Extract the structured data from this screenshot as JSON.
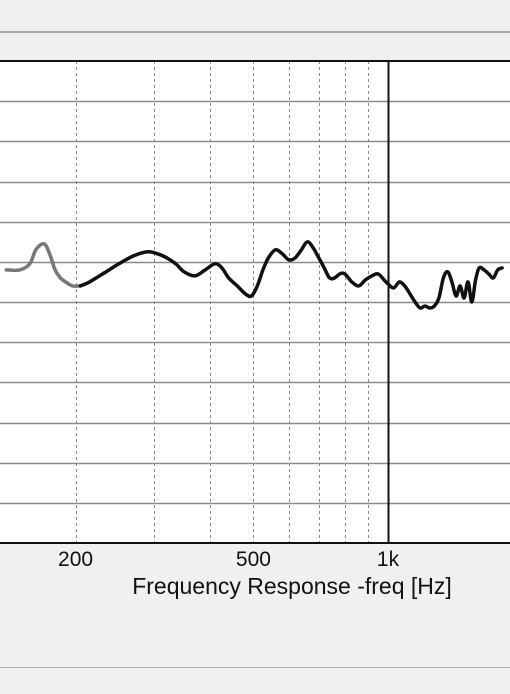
{
  "chart_data": {
    "type": "line",
    "title": "",
    "xlabel": "Frequency Response -freq [Hz]",
    "xlabel_parts": [
      "Frequency",
      "Response",
      "-freq",
      "[Hz]"
    ],
    "x_scale": "log",
    "xlim": [
      140,
      1800
    ],
    "ylim": [
      0,
      12
    ],
    "grid": true,
    "x_tick_labels": [
      {
        "value": 200,
        "label": "200"
      },
      {
        "value": 500,
        "label": "500"
      },
      {
        "value": 1000,
        "label": "1k"
      }
    ],
    "x_minor_gridlines": [
      200,
      300,
      400,
      500,
      600,
      700,
      800,
      900,
      1000
    ],
    "y_gridlines": [
      1,
      2,
      3,
      4,
      5,
      6,
      7,
      8,
      9,
      10,
      11
    ],
    "colors": {
      "trace": "#111111",
      "trace_low": "#777777",
      "grid": "#888888"
    },
    "series": [
      {
        "values_x": [
          140,
          150,
          158,
          163,
          170,
          175,
          180,
          185,
          190,
          197,
          205,
          215,
          230,
          250,
          270,
          290,
          305,
          320,
          335,
          350,
          370,
          390,
          410,
          425,
          440,
          460,
          480,
          495,
          510,
          525,
          540,
          560,
          580,
          600,
          620,
          640,
          660,
          680,
          700,
          720,
          740,
          760,
          780,
          800,
          830,
          860,
          890,
          920,
          950,
          980,
          1000,
          1030,
          1060,
          1090,
          1120,
          1150,
          1180,
          1210,
          1240,
          1270,
          1300,
          1330,
          1360,
          1390,
          1420,
          1450,
          1480,
          1510,
          1540,
          1570,
          1600,
          1640,
          1680,
          1720,
          1760,
          1800
        ],
        "values_y": [
          6.8,
          6.8,
          6.95,
          7.3,
          7.45,
          7.2,
          6.8,
          6.6,
          6.5,
          6.4,
          6.4,
          6.5,
          6.7,
          6.95,
          7.15,
          7.25,
          7.2,
          7.1,
          6.95,
          6.75,
          6.65,
          6.8,
          6.95,
          6.85,
          6.6,
          6.4,
          6.2,
          6.15,
          6.4,
          6.8,
          7.1,
          7.3,
          7.2,
          7.05,
          7.1,
          7.3,
          7.5,
          7.35,
          7.1,
          6.85,
          6.6,
          6.6,
          6.7,
          6.7,
          6.5,
          6.4,
          6.55,
          6.65,
          6.7,
          6.55,
          6.45,
          6.35,
          6.5,
          6.4,
          6.2,
          6.0,
          5.85,
          5.9,
          5.85,
          5.9,
          6.1,
          6.6,
          6.75,
          6.5,
          6.15,
          6.4,
          6.1,
          6.5,
          6.0,
          6.55,
          6.85,
          6.8,
          6.7,
          6.6,
          6.8,
          6.85
        ]
      }
    ]
  }
}
